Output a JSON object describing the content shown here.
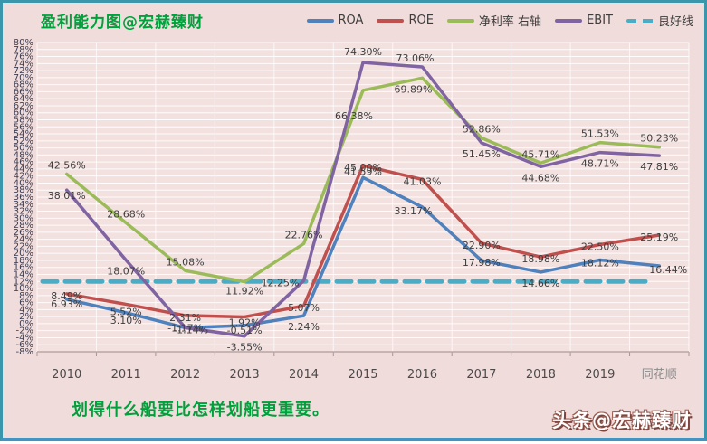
{
  "title": "盈利能力图@宏赫臻财",
  "footer_quote": "划得什么船要比怎样划船更重要。",
  "brand_badge": "头条@宏赫臻财",
  "colors": {
    "background": "#f0dcdb",
    "frame_teal": "#3a96ab",
    "title_green": "#00a03c",
    "axis_text": "#3c3c50",
    "data_label": "#3d3d3d",
    "watermark_gray": "#8a8a8a",
    "roa_blue": "#4f81bd",
    "roe_red": "#c0504d",
    "net_margin_green": "#9bbb59",
    "ebit_purple": "#8064a2",
    "good_line_cyan": "#4bacc6"
  },
  "chart_data": {
    "type": "line",
    "title": "盈利能力图@宏赫臻财",
    "categories": [
      "2010",
      "2011",
      "2012",
      "2013",
      "2014",
      "2015",
      "2016",
      "2017",
      "2018",
      "2019",
      ""
    ],
    "x_axis_note": "同花顺",
    "ylim": [
      -8,
      80
    ],
    "y_tick_step": 2,
    "y_tick_format": "percent",
    "grid": true,
    "legend_position": "top",
    "series": [
      {
        "name": "ROA",
        "color": "#4f81bd",
        "values": [
          6.93,
          3.1,
          -1.17,
          -0.51,
          2.24,
          41.59,
          33.17,
          17.98,
          14.66,
          18.12,
          16.44
        ]
      },
      {
        "name": "ROE",
        "color": "#c0504d",
        "values": [
          8.49,
          5.52,
          2.31,
          1.92,
          5.07,
          45.0,
          41.03,
          22.9,
          18.98,
          22.5,
          25.19
        ]
      },
      {
        "name": "净利率 右轴",
        "color": "#9bbb59",
        "values": [
          42.56,
          28.68,
          15.08,
          11.92,
          22.76,
          66.38,
          69.89,
          52.86,
          45.71,
          51.53,
          50.23
        ]
      },
      {
        "name": "EBIT",
        "color": "#8064a2",
        "values": [
          38.01,
          18.07,
          -1.14,
          -3.55,
          12.25,
          74.3,
          73.06,
          51.45,
          44.68,
          48.71,
          47.81
        ]
      },
      {
        "name": "良好线",
        "color": "#4bacc6",
        "style": "dashed",
        "constant": 12
      }
    ]
  }
}
